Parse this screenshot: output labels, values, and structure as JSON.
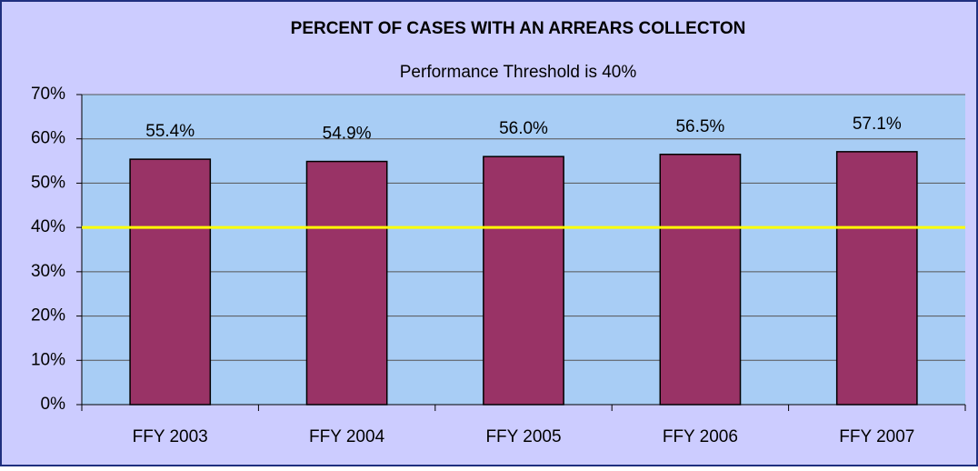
{
  "chart_data": {
    "type": "bar",
    "title": "PERCENT OF CASES WITH AN ARREARS COLLECTON",
    "subtitle": "Performance Threshold is 40%",
    "categories": [
      "FFY 2003",
      "FFY 2004",
      "FFY 2005",
      "FFY 2006",
      "FFY 2007"
    ],
    "values": [
      55.4,
      54.9,
      56.0,
      56.5,
      57.1
    ],
    "value_labels": [
      "55.4%",
      "54.9%",
      "56.0%",
      "56.5%",
      "57.1%"
    ],
    "color": "#993366",
    "threshold": 40,
    "threshold_color": "#ffff00",
    "ylim": [
      0,
      70
    ],
    "yticks": [
      {
        "value": 0,
        "label": "0%"
      },
      {
        "value": 10,
        "label": "10%"
      },
      {
        "value": 20,
        "label": "20%"
      },
      {
        "value": 30,
        "label": "30%"
      },
      {
        "value": 40,
        "label": "40%"
      },
      {
        "value": 50,
        "label": "50%"
      },
      {
        "value": 60,
        "label": "60%"
      },
      {
        "value": 70,
        "label": "70%"
      }
    ],
    "grid": true
  }
}
